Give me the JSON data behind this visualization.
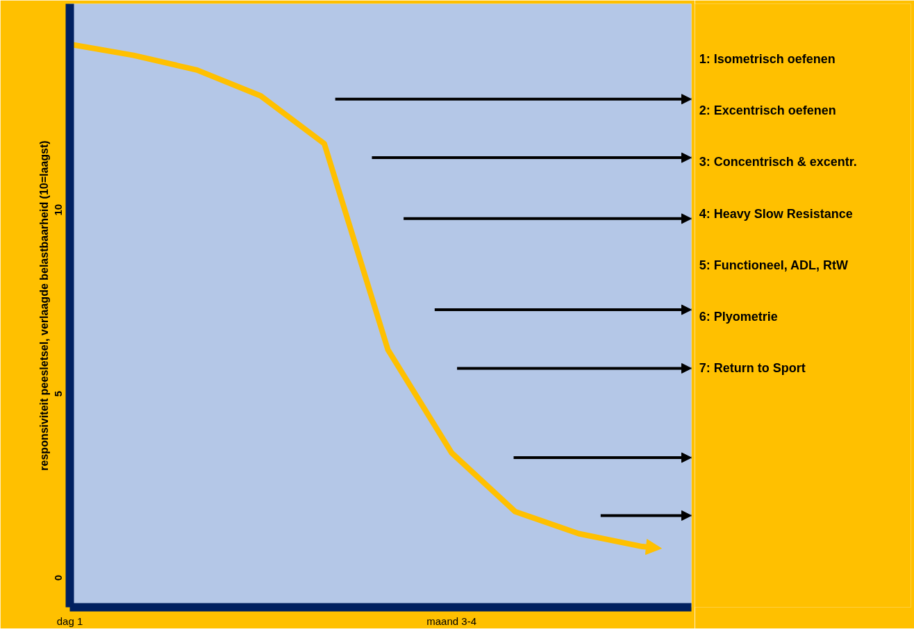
{
  "chart_data": {
    "type": "line",
    "ylabel": "responsiviteit peesletsel, verlaagde belastbaarheid (10=laagst)",
    "categories": [
      "dag 1",
      null,
      null,
      null,
      null,
      null,
      "maand 3-4",
      null,
      null,
      null
    ],
    "ylim": [
      -0.8,
      15.6
    ],
    "yticks": [
      0,
      5,
      10
    ],
    "series": [
      {
        "color": "#ffc000",
        "values": [
          14.5,
          14.2,
          13.8,
          13.1,
          11.8,
          6.2,
          3.4,
          1.8,
          1.2,
          0.85
        ]
      }
    ],
    "annotations": [
      "1: Isometrisch oefenen",
      "2: Excentrisch oefenen",
      "3: Concentrisch & excentr.",
      "4: Heavy Slow Resistance",
      "5: Functioneel, ADL, RtW",
      "6: Plyometrie",
      "7: Return to Sport"
    ]
  }
}
